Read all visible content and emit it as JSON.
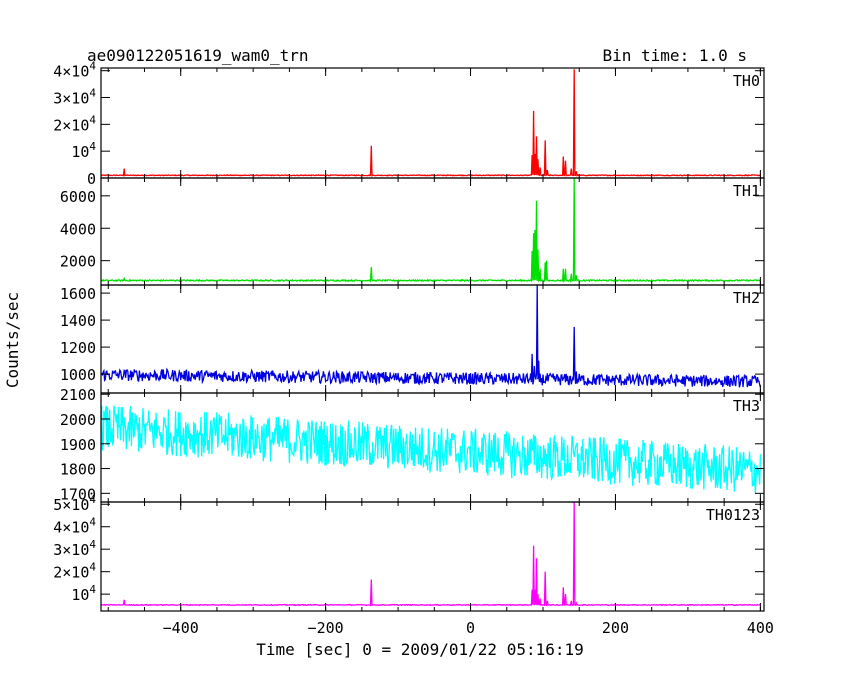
{
  "chart_data": {
    "type": "line",
    "title": "ae090122051619_wam0_trn",
    "subtitle": "Bin time: 1.0 s",
    "xlabel": "Time [sec] 0 = 2009/01/22 05:16:19",
    "ylabel": "Counts/sec",
    "xlim": [
      -510,
      405
    ],
    "xticks": [
      -400,
      -200,
      0,
      200,
      400
    ],
    "x_tick_labels": [
      "−400",
      "−200",
      "0",
      "200",
      "400"
    ],
    "grid": false,
    "panels": [
      {
        "name": "TH0",
        "color": "#ff0000",
        "ylim": [
          0,
          41000
        ],
        "yticks": [
          0,
          10000,
          20000,
          30000,
          40000
        ],
        "ytick_labels": [
          {
            "mant": "0",
            "exp": ""
          },
          {
            "mant": "10",
            "exp": "4"
          },
          {
            "mant": "2×10",
            "exp": "4"
          },
          {
            "mant": "3×10",
            "exp": "4"
          },
          {
            "mant": "4×10",
            "exp": "4"
          }
        ],
        "baseline": 1000,
        "noise": 150,
        "peaks": [
          [
            -478,
            3500
          ],
          [
            -137,
            12000
          ],
          [
            85,
            8500
          ],
          [
            87,
            25000
          ],
          [
            89,
            9000
          ],
          [
            91,
            15500
          ],
          [
            93,
            7000
          ],
          [
            96,
            4000
          ],
          [
            103,
            14000
          ],
          [
            106,
            3000
          ],
          [
            128,
            8000
          ],
          [
            131,
            6500
          ],
          [
            139,
            3500
          ],
          [
            143,
            40500
          ],
          [
            146,
            2500
          ]
        ]
      },
      {
        "name": "TH1",
        "color": "#00e000",
        "ylim": [
          500,
          7100
        ],
        "yticks": [
          2000,
          4000,
          6000
        ],
        "ytick_labels": [
          {
            "mant": "2000",
            "exp": ""
          },
          {
            "mant": "4000",
            "exp": ""
          },
          {
            "mant": "6000",
            "exp": ""
          }
        ],
        "baseline": 780,
        "noise": 40,
        "peaks": [
          [
            -478,
            900
          ],
          [
            -137,
            1600
          ],
          [
            85,
            2600
          ],
          [
            87,
            3700
          ],
          [
            89,
            3900
          ],
          [
            91,
            5700
          ],
          [
            93,
            2700
          ],
          [
            96,
            1500
          ],
          [
            103,
            1900
          ],
          [
            105,
            2000
          ],
          [
            128,
            1500
          ],
          [
            131,
            1500
          ],
          [
            139,
            1200
          ],
          [
            143,
            7100
          ],
          [
            146,
            1100
          ]
        ]
      },
      {
        "name": "TH2",
        "color": "#0000e0",
        "ylim": [
          860,
          1660
        ],
        "yticks": [
          1000,
          1200,
          1400,
          1600
        ],
        "ytick_labels": [
          {
            "mant": "1000",
            "exp": ""
          },
          {
            "mant": "1200",
            "exp": ""
          },
          {
            "mant": "1400",
            "exp": ""
          },
          {
            "mant": "1600",
            "exp": ""
          }
        ],
        "baseline_start": 995,
        "baseline_end": 945,
        "noise": 45,
        "peaks": [
          [
            85,
            1150
          ],
          [
            88,
            1060
          ],
          [
            92,
            1660
          ],
          [
            94,
            1100
          ],
          [
            143,
            1350
          ],
          [
            146,
            1020
          ]
        ]
      },
      {
        "name": "TH3",
        "color": "#00ffff",
        "ylim": [
          1665,
          2105
        ],
        "yticks": [
          1700,
          1800,
          1900,
          2000,
          2100
        ],
        "ytick_labels": [
          {
            "mant": "1700",
            "exp": ""
          },
          {
            "mant": "1800",
            "exp": ""
          },
          {
            "mant": "1900",
            "exp": ""
          },
          {
            "mant": "2000",
            "exp": ""
          },
          {
            "mant": "2100",
            "exp": ""
          }
        ],
        "baseline_start": 1965,
        "baseline_end": 1790,
        "noise": 95,
        "peaks": []
      },
      {
        "name": "TH0123",
        "color": "#ff00ff",
        "ylim": [
          2500,
          51000
        ],
        "yticks": [
          10000,
          20000,
          30000,
          40000,
          50000
        ],
        "ytick_labels": [
          {
            "mant": "10",
            "exp": "4"
          },
          {
            "mant": "2×10",
            "exp": "4"
          },
          {
            "mant": "3×10",
            "exp": "4"
          },
          {
            "mant": "4×10",
            "exp": "4"
          },
          {
            "mant": "5×10",
            "exp": "4"
          }
        ],
        "baseline": 5200,
        "noise": 160,
        "peaks": [
          [
            -478,
            7500
          ],
          [
            -137,
            16500
          ],
          [
            85,
            12000
          ],
          [
            87,
            31500
          ],
          [
            89,
            12000
          ],
          [
            91,
            26000
          ],
          [
            93,
            10000
          ],
          [
            96,
            8000
          ],
          [
            103,
            20000
          ],
          [
            106,
            7000
          ],
          [
            128,
            13000
          ],
          [
            131,
            10000
          ],
          [
            139,
            7000
          ],
          [
            143,
            51000
          ],
          [
            146,
            6000
          ]
        ]
      }
    ]
  }
}
